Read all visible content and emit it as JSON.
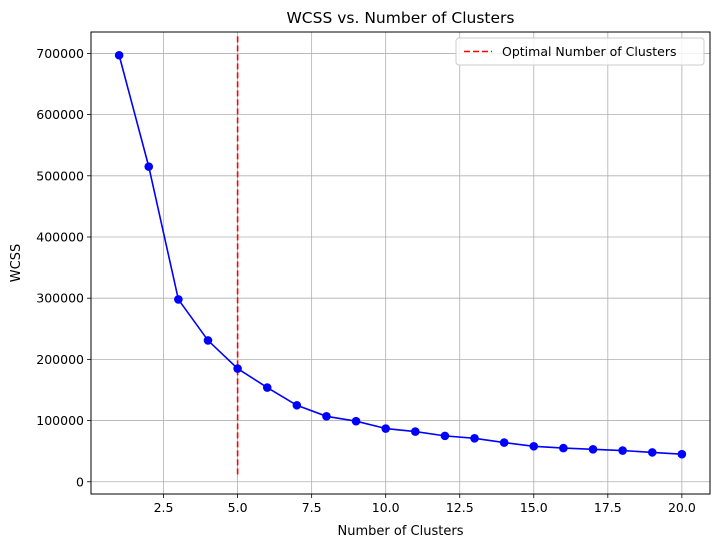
{
  "chart_data": {
    "type": "line",
    "title": "WCSS vs. Number of Clusters",
    "xlabel": "Number of Clusters",
    "ylabel": "WCSS",
    "xlim": [
      0.05,
      20.95
    ],
    "ylim": [
      -20000,
      735000
    ],
    "xticks": [
      2.5,
      5.0,
      7.5,
      10.0,
      12.5,
      15.0,
      17.5,
      20.0
    ],
    "xtick_labels": [
      "2.5",
      "5.0",
      "7.5",
      "10.0",
      "12.5",
      "15.0",
      "17.5",
      "20.0"
    ],
    "yticks": [
      0,
      100000,
      200000,
      300000,
      400000,
      500000,
      600000,
      700000
    ],
    "ytick_labels": [
      "0",
      "100000",
      "200000",
      "300000",
      "400000",
      "500000",
      "600000",
      "700000"
    ],
    "grid": true,
    "legend_position": "top-right",
    "series": [
      {
        "color": "#0000ff",
        "marker": "circle",
        "x": [
          1,
          2,
          3,
          4,
          5,
          6,
          7,
          8,
          9,
          10,
          11,
          12,
          13,
          14,
          15,
          16,
          17,
          18,
          19,
          20
        ],
        "values": [
          697000,
          515000,
          298000,
          231000,
          185000,
          154000,
          125000,
          107000,
          99000,
          87000,
          82000,
          75000,
          71000,
          64000,
          58000,
          55000,
          53000,
          51000,
          48000,
          45000
        ]
      }
    ],
    "reference_lines": [
      {
        "name": "Optimal Number of Clusters",
        "orientation": "vertical",
        "x": 5,
        "y_range": [
          12000,
          728000
        ],
        "color": "#ff0000",
        "style": "dashed"
      }
    ]
  }
}
